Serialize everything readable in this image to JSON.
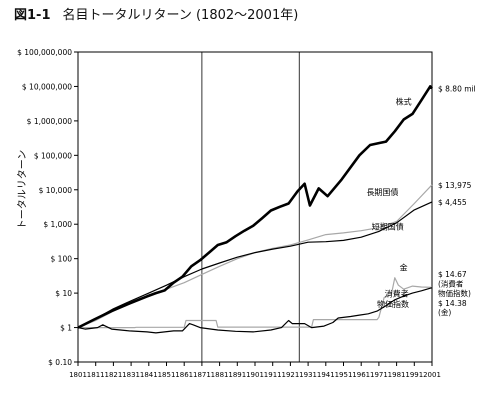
{
  "figure_number": "図1-1",
  "title": "名目トータルリターン (1802～2001年)",
  "chart_data": {
    "type": "line",
    "ylabel": "トータルリターン",
    "y_scale": "log",
    "ylim": [
      0.1,
      100000000
    ],
    "xlim": [
      1801,
      2001
    ],
    "x_ticks": [
      1801,
      1811,
      1821,
      1831,
      1841,
      1851,
      1861,
      1871,
      1881,
      1891,
      1901,
      1911,
      1921,
      1931,
      1941,
      1951,
      1961,
      1971,
      1981,
      1991,
      2001
    ],
    "y_ticks": [
      {
        "value": 100000000,
        "label": "$ 100,000,000"
      },
      {
        "value": 10000000,
        "label": "$ 10,000,000"
      },
      {
        "value": 1000000,
        "label": "$ 1,000,000"
      },
      {
        "value": 100000,
        "label": "$ 100,000"
      },
      {
        "value": 10000,
        "label": "$ 10,000"
      },
      {
        "value": 1000,
        "label": "$ 1,000"
      },
      {
        "value": 100,
        "label": "$ 100"
      },
      {
        "value": 10,
        "label": "$ 10"
      },
      {
        "value": 1,
        "label": "$ 1"
      },
      {
        "value": 0.1,
        "label": "$ 0.10"
      }
    ],
    "vertical_reference_lines": [
      1871,
      1926
    ],
    "series": [
      {
        "name": "株式",
        "end_label": "$ 8.80 mil",
        "color": "#000000",
        "width": 2.6,
        "x": [
          1801,
          1810,
          1820,
          1830,
          1840,
          1845,
          1850,
          1855,
          1860,
          1865,
          1870,
          1875,
          1880,
          1885,
          1890,
          1895,
          1900,
          1905,
          1910,
          1915,
          1920,
          1925,
          1929,
          1932,
          1937,
          1942,
          1950,
          1960,
          1966,
          1970,
          1975,
          1980,
          1985,
          1990,
          1995,
          2000,
          2001
        ],
        "y": [
          1,
          1.7,
          3,
          5,
          8,
          10,
          12,
          20,
          30,
          60,
          90,
          150,
          250,
          300,
          450,
          650,
          900,
          1500,
          2500,
          3200,
          4000,
          9000,
          15000,
          3500,
          11000,
          6500,
          20000,
          100000,
          200000,
          220000,
          250000,
          500000,
          1100000,
          1600000,
          4000000,
          10000000,
          8800000
        ]
      },
      {
        "name": "長期国債",
        "end_label": "$ 13,975",
        "color": "#a8a8a8",
        "width": 1.2,
        "x": [
          1801,
          1811,
          1821,
          1831,
          1841,
          1851,
          1861,
          1871,
          1881,
          1891,
          1901,
          1911,
          1921,
          1931,
          1941,
          1951,
          1961,
          1971,
          1981,
          1991,
          2001
        ],
        "y": [
          1,
          1.6,
          3,
          5,
          8,
          13,
          20,
          35,
          60,
          100,
          150,
          200,
          250,
          350,
          500,
          560,
          650,
          800,
          1200,
          4000,
          13975
        ]
      },
      {
        "name": "短期国債",
        "end_label": "$ 4,455",
        "color": "#000000",
        "width": 1.2,
        "x": [
          1801,
          1811,
          1821,
          1831,
          1841,
          1851,
          1861,
          1871,
          1881,
          1891,
          1901,
          1911,
          1921,
          1931,
          1941,
          1951,
          1961,
          1971,
          1981,
          1991,
          2001
        ],
        "y": [
          1,
          1.8,
          3.5,
          6,
          10,
          17,
          30,
          50,
          75,
          110,
          150,
          190,
          230,
          300,
          310,
          340,
          420,
          620,
          1100,
          2600,
          4455
        ]
      },
      {
        "name": "金",
        "end_label": "$ 14.67",
        "color": "#a8a8a8",
        "width": 1.2,
        "x": [
          1801,
          1833,
          1834,
          1861,
          1862,
          1879,
          1880,
          1933,
          1934,
          1970,
          1971,
          1974,
          1978,
          1980,
          1982,
          1985,
          1990,
          1995,
          2001
        ],
        "y": [
          1,
          1,
          1.02,
          1.02,
          1.6,
          1.6,
          1.03,
          1.03,
          1.7,
          1.7,
          2.0,
          7.5,
          9,
          28,
          17,
          13,
          16,
          15,
          14.67
        ]
      },
      {
        "name": "消費者物価指数",
        "end_label": "$ 14.38",
        "color": "#000000",
        "width": 1.2,
        "x": [
          1801,
          1805,
          1812,
          1815,
          1820,
          1830,
          1840,
          1845,
          1855,
          1860,
          1864,
          1866,
          1870,
          1880,
          1890,
          1900,
          1910,
          1916,
          1920,
          1922,
          1929,
          1933,
          1940,
          1945,
          1948,
          1955,
          1960,
          1965,
          1970,
          1975,
          1980,
          1985,
          1990,
          1995,
          2001
        ],
        "y": [
          1,
          0.9,
          1.0,
          1.2,
          0.9,
          0.8,
          0.75,
          0.7,
          0.8,
          0.8,
          1.3,
          1.2,
          1.0,
          0.85,
          0.78,
          0.75,
          0.85,
          1.0,
          1.6,
          1.3,
          1.3,
          1.0,
          1.1,
          1.4,
          1.9,
          2.1,
          2.3,
          2.5,
          3.0,
          4.3,
          6.4,
          8.2,
          10.0,
          11.7,
          14.38
        ]
      }
    ],
    "annotations": [
      {
        "text": "株式",
        "x": 1985,
        "y": 3000000
      },
      {
        "text": "長期国債",
        "x": 1973,
        "y": 7000
      },
      {
        "text": "短期国債",
        "x": 1976,
        "y": 700
      },
      {
        "text": "金",
        "x": 1985,
        "y": 45
      },
      {
        "text": "消費者",
        "x": 1981,
        "y": 8
      },
      {
        "text": "物価指数",
        "x": 1979,
        "y": 3.9
      }
    ],
    "side_labels": [
      {
        "text": "$ 8.80 mil",
        "y": 8800000
      },
      {
        "text": "$ 13,975",
        "y": 13975
      },
      {
        "text": "$ 4,455",
        "y": 4455
      },
      {
        "text": "$ 14.67",
        "y": 36
      },
      {
        "text": "(消費者",
        "y": 19
      },
      {
        "text": "物価指数)",
        "y": 10
      },
      {
        "text": "$ 14.38",
        "y": 5.2
      },
      {
        "text": "(金)",
        "y": 2.8
      }
    ],
    "grid": false
  }
}
